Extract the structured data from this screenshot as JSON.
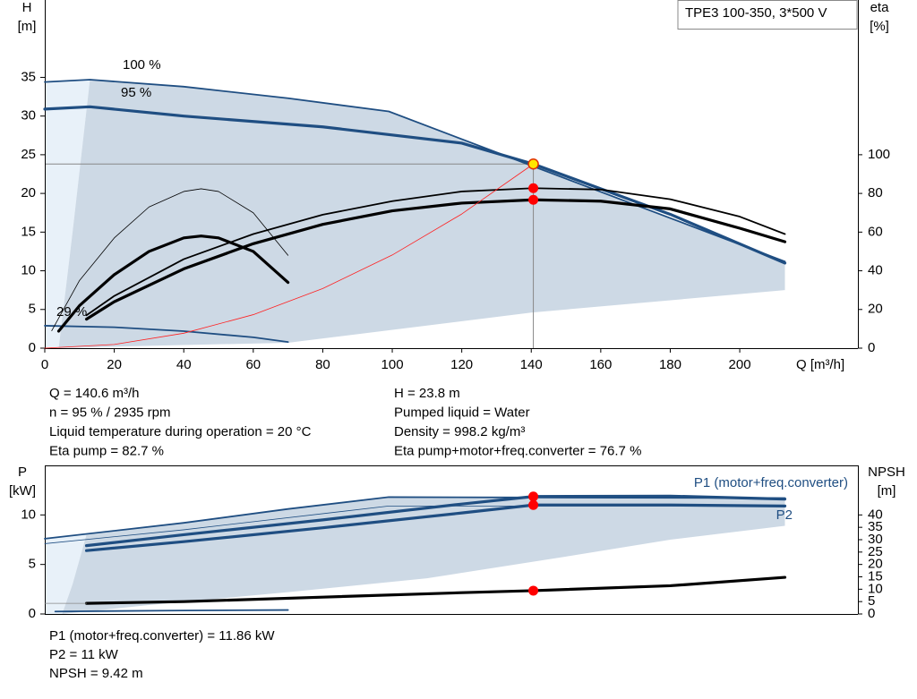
{
  "chart_data": [
    {
      "type": "line",
      "title": "TPE3 100-350, 3*500 V",
      "y_label": "H",
      "y_unit": "[m]",
      "y2_label": "eta",
      "y2_unit": "[%]",
      "x_label": "Q [m³/h]",
      "xlim": [
        0,
        234
      ],
      "xticks": [
        0,
        20,
        40,
        60,
        80,
        100,
        120,
        140,
        160,
        180,
        200
      ],
      "ylim": [
        0,
        45
      ],
      "yticks": [
        0,
        5,
        10,
        15,
        20,
        25,
        30,
        35
      ],
      "y2lim": [
        0,
        180
      ],
      "y2ticks": [
        0,
        20,
        40,
        60,
        80,
        100
      ],
      "areas": [
        {
          "color": "#e8f1f9",
          "x": [
            0,
            13,
            8,
            4,
            0
          ],
          "values": [
            34.4,
            34.7,
            15,
            0,
            0
          ]
        },
        {
          "color": "#cdd9e5",
          "x": [
            13,
            40,
            70,
            99,
            213,
            213,
            140,
            70,
            30,
            4,
            8
          ],
          "values": [
            34.7,
            33.8,
            32.3,
            30.6,
            11.2,
            7.5,
            4.6,
            0.7,
            0.3,
            0,
            15
          ]
        }
      ],
      "series": [
        {
          "name": "100 %",
          "color": "#1f4e82",
          "style": "normal",
          "x": [
            0,
            13,
            40,
            70,
            99,
            140.6,
            213
          ],
          "values": [
            34.4,
            34.7,
            33.8,
            32.3,
            30.6,
            23.5,
            11.2
          ]
        },
        {
          "name": "95 %",
          "color": "#1f4e82",
          "style": "thick",
          "x": [
            0,
            13,
            40,
            80,
            120,
            140.6,
            180,
            213
          ],
          "values": [
            30.9,
            31.2,
            30.0,
            28.6,
            26.5,
            23.8,
            17.3,
            11.0
          ]
        },
        {
          "name": "29 %",
          "color": "#1f4e82",
          "style": "normal",
          "x": [
            0,
            20,
            40,
            60,
            70
          ],
          "values": [
            2.9,
            2.7,
            2.2,
            1.4,
            0.8
          ]
        },
        {
          "color": "#000000",
          "style": "normal",
          "axis": "y2",
          "x": [
            12,
            20,
            40,
            60,
            80,
            100,
            120,
            140.6,
            160,
            180,
            200,
            213
          ],
          "values": [
            17,
            27,
            46,
            59,
            69,
            76,
            81,
            82.7,
            82,
            77,
            68,
            59
          ]
        },
        {
          "color": "#000000",
          "style": "thick",
          "axis": "y2",
          "x": [
            12,
            20,
            40,
            60,
            80,
            100,
            120,
            140.6,
            160,
            180,
            200,
            213
          ],
          "values": [
            15,
            24,
            41,
            54,
            64,
            71,
            75,
            76.7,
            76,
            72,
            62,
            55
          ]
        },
        {
          "color": "#000000",
          "style": "thin",
          "axis": "y2",
          "x": [
            2,
            10,
            20,
            30,
            40,
            45,
            50,
            60,
            70
          ],
          "values": [
            9,
            35,
            57,
            73,
            81,
            82.4,
            81,
            70,
            48
          ]
        },
        {
          "color": "#000000",
          "style": "thick",
          "axis": "y2",
          "x": [
            4,
            10,
            20,
            30,
            40,
            45,
            50,
            60,
            70
          ],
          "values": [
            8.8,
            22,
            38,
            50,
            57,
            58,
            57,
            50,
            34
          ]
        },
        {
          "color": "#ff2020",
          "style": "thin",
          "x": [
            0,
            20,
            40,
            60,
            80,
            100,
            120,
            140.6
          ],
          "values": [
            0,
            0.48,
            1.93,
            4.33,
            7.71,
            12.04,
            17.34,
            23.8
          ]
        }
      ],
      "markers": [
        {
          "x": 140.6,
          "y": 23.8,
          "color": "#ffe600"
        },
        {
          "x": 140.6,
          "y": 82.7,
          "axis": "y2",
          "color": "#ff0000"
        },
        {
          "x": 140.6,
          "y": 76.7,
          "axis": "y2",
          "color": "#ff0000"
        }
      ]
    },
    {
      "type": "line",
      "y_label": "P",
      "y_unit": "[kW]",
      "y2_label": "NPSH",
      "y2_unit": "[m]",
      "xlim": [
        0,
        234
      ],
      "ylim": [
        0,
        15
      ],
      "yticks": [
        0,
        5,
        10
      ],
      "y2lim": [
        0,
        60
      ],
      "y2ticks": [
        0,
        5,
        10,
        15,
        20,
        25,
        30,
        35,
        40
      ],
      "areas": [
        {
          "color": "#e8f1f9",
          "x": [
            0,
            12,
            8,
            5,
            0
          ],
          "values": [
            7.6,
            8.0,
            3,
            0,
            0
          ]
        },
        {
          "color": "#cdd9e5",
          "x": [
            12,
            40,
            70,
            99,
            213,
            213,
            180,
            150,
            110,
            70,
            30,
            5,
            8
          ],
          "values": [
            8.0,
            9.2,
            10.6,
            11.8,
            11.7,
            8.9,
            7.5,
            5.8,
            3.6,
            2.2,
            0.9,
            0,
            3
          ]
        }
      ],
      "series": [
        {
          "name": "P1 (motor+freq.converter)",
          "color": "#1f4e82",
          "style": "thick",
          "x": [
            12,
            40,
            80,
            120,
            140.6,
            180,
            213
          ],
          "values": [
            6.9,
            8.0,
            9.5,
            11.1,
            11.86,
            11.9,
            11.6
          ]
        },
        {
          "name": "P2",
          "color": "#1f4e82",
          "style": "thick",
          "x": [
            12,
            40,
            80,
            120,
            140.6,
            180,
            213
          ],
          "values": [
            6.4,
            7.3,
            8.7,
            10.2,
            11.0,
            11.0,
            10.9
          ]
        },
        {
          "color": "#1f4e82",
          "style": "normal",
          "x": [
            0,
            40,
            70,
            99,
            213
          ],
          "values": [
            7.6,
            9.2,
            10.6,
            11.8,
            11.7
          ]
        },
        {
          "color": "#1f4e82",
          "style": "thin",
          "x": [
            0,
            40,
            99,
            213
          ],
          "values": [
            7.1,
            8.5,
            10.9,
            10.9
          ]
        },
        {
          "color": "#1f4e82",
          "style": "normal",
          "x": [
            3,
            20,
            40,
            70
          ],
          "values": [
            0.25,
            0.3,
            0.35,
            0.4
          ]
        },
        {
          "color": "#000000",
          "style": "thick",
          "axis": "y2",
          "x": [
            12,
            40,
            80,
            120,
            140.6,
            180,
            213
          ],
          "values": [
            4.3,
            5.0,
            6.8,
            8.6,
            9.42,
            11.4,
            14.8
          ]
        },
        {
          "color": "#888888",
          "style": "thin",
          "axis": "y2",
          "x": [
            0,
            12
          ],
          "values": [
            4.3,
            4.3
          ]
        }
      ],
      "markers": [
        {
          "x": 140.6,
          "y": 11.86,
          "color": "#ff0000"
        },
        {
          "x": 140.6,
          "y": 11.0,
          "color": "#ff0000"
        },
        {
          "x": 140.6,
          "y": 9.42,
          "axis": "y2",
          "color": "#ff0000"
        }
      ]
    }
  ],
  "info": {
    "left": [
      "Q = 140.6 m³/h",
      "n = 95 % / 2935 rpm",
      "Liquid temperature during operation = 20 °C",
      "Eta pump = 82.7 %"
    ],
    "right": [
      "H = 23.8 m",
      "Pumped liquid = Water",
      "Density = 998.2 kg/m³",
      "Eta pump+motor+freq.converter = 76.7 %"
    ],
    "power": [
      "P1 (motor+freq.converter) = 11.86 kW",
      "P2 = 11 kW",
      "NPSH = 9.42 m"
    ]
  }
}
